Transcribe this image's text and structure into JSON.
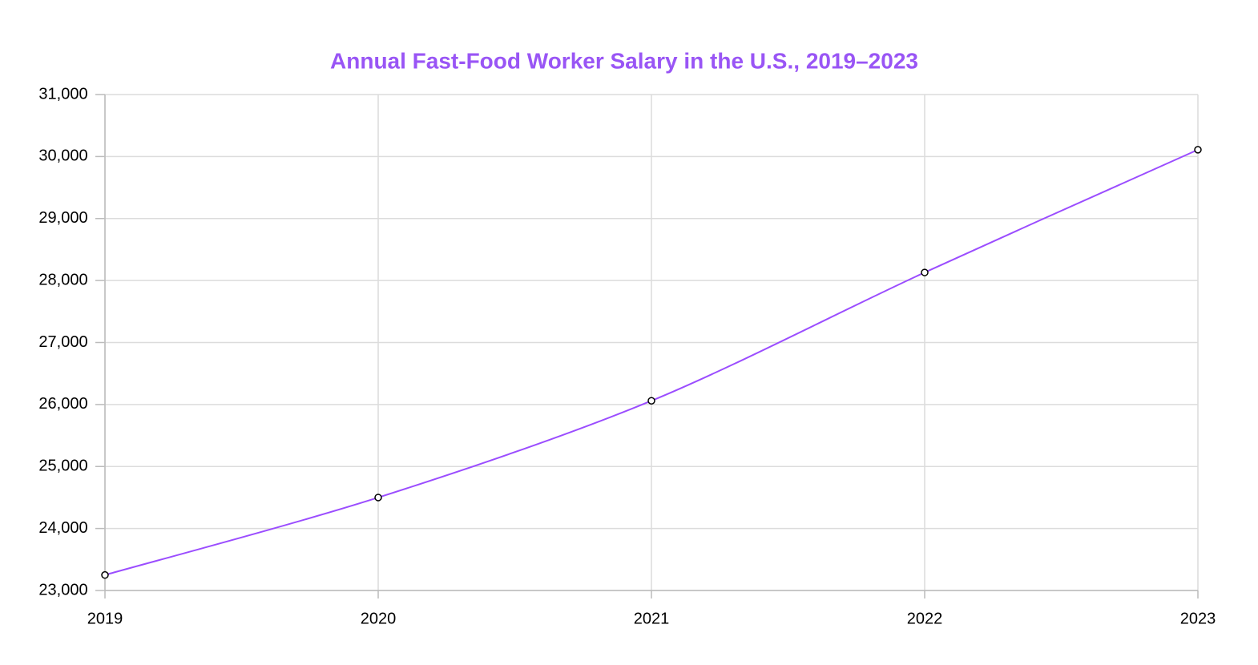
{
  "chart_data": {
    "type": "line",
    "title": "Annual Fast-Food Worker Salary in the U.S., 2019–2023",
    "categories": [
      "2019",
      "2020",
      "2021",
      "2022",
      "2023"
    ],
    "series": [
      {
        "color": "#9b4dff",
        "values": [
          23250,
          24500,
          26060,
          28130,
          30110
        ]
      }
    ],
    "ylim": [
      23000,
      31000
    ],
    "yticks": [
      {
        "value": 23000,
        "label": "23,000"
      },
      {
        "value": 24000,
        "label": "24,000"
      },
      {
        "value": 25000,
        "label": "25,000"
      },
      {
        "value": 26000,
        "label": "26,000"
      },
      {
        "value": 27000,
        "label": "27,000"
      },
      {
        "value": 28000,
        "label": "28,000"
      },
      {
        "value": 29000,
        "label": "29,000"
      },
      {
        "value": 30000,
        "label": "30,000"
      },
      {
        "value": 31000,
        "label": "31,000"
      }
    ],
    "grid": true
  }
}
